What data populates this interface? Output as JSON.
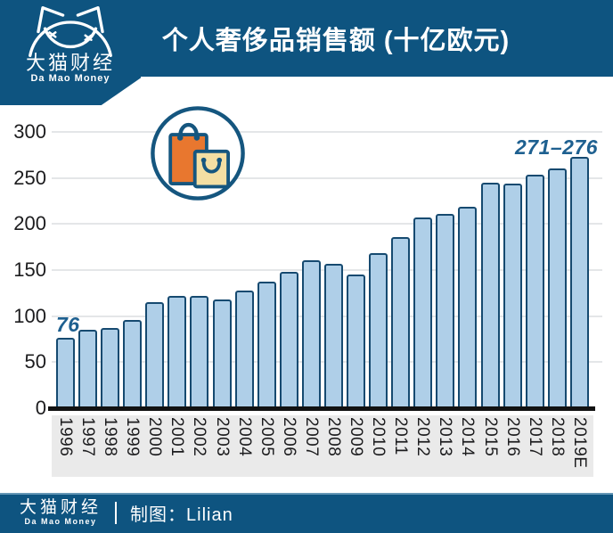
{
  "header": {
    "title": "个人奢侈品销售额 (十亿欧元)"
  },
  "logo": {
    "name_cn": "大猫财经",
    "name_en": "Da Mao Money"
  },
  "chart_data": {
    "type": "bar",
    "title": "个人奢侈品销售额 (十亿欧元)",
    "unit": "十亿欧元",
    "categories": [
      "1996",
      "1997",
      "1998",
      "1999",
      "2000",
      "2001",
      "2002",
      "2003",
      "2004",
      "2005",
      "2006",
      "2007",
      "2008",
      "2009",
      "2010",
      "2011",
      "2012",
      "2013",
      "2014",
      "2015",
      "2016",
      "2017",
      "2018",
      "2019E"
    ],
    "values": [
      76,
      85,
      87,
      96,
      115,
      122,
      122,
      118,
      128,
      137,
      148,
      161,
      157,
      145,
      168,
      186,
      207,
      211,
      219,
      245,
      244,
      254,
      260,
      273
    ],
    "annotations": {
      "first_bar_label": "76",
      "last_bar_label": "271–276"
    },
    "ylim": [
      0,
      300
    ],
    "yticks": [
      0,
      50,
      100,
      150,
      200,
      250,
      300
    ],
    "grid": true,
    "legend": "none",
    "xlabel": "",
    "ylabel": ""
  },
  "icons": {
    "cat_logo": "cat-logo-icon",
    "shopping_bags": "shopping-bags-icon"
  },
  "colors": {
    "brand_blue": "#0E5480",
    "bar_fill": "#AFCFE8",
    "bar_border": "#164A70",
    "annotation_blue": "#1E6090",
    "gridline": "#E4E6E8",
    "axis_black": "#121212",
    "x_strip_gray": "#EAEAEA",
    "bag_orange": "#E8772F",
    "bag_cream": "#F4DFA3",
    "icon_stroke": "#15567F"
  },
  "footer": {
    "brand_cn": "大猫财经",
    "brand_en": "Da Mao Money",
    "credit": "制图：Lilian"
  }
}
